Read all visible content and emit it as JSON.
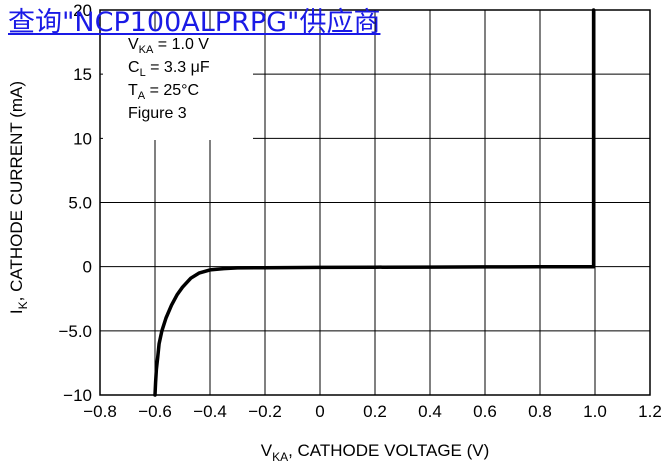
{
  "link": {
    "text": "查询\"NCP100ALPRPG\"供应商"
  },
  "chart_data": {
    "type": "line",
    "ylabel": "I",
    "ylabel_sub": "K",
    "ylabel_rest": ", CATHODE CURRENT (mA)",
    "xlabel": "V",
    "xlabel_sub": "KA",
    "xlabel_rest": ", CATHODE VOLTAGE (V)",
    "xlim": [
      -0.8,
      1.2
    ],
    "ylim": [
      -10,
      20
    ],
    "x_ticks": [
      -0.8,
      -0.6,
      -0.4,
      -0.2,
      0,
      0.2,
      0.4,
      0.6,
      0.8,
      1.0,
      1.2
    ],
    "x_tick_labels": [
      "−0.8",
      "−0.6",
      "−0.4",
      "−0.2",
      "0",
      "0.2",
      "0.4",
      "0.6",
      "0.8",
      "1.0",
      "1.2"
    ],
    "y_ticks": [
      -10,
      -5,
      0,
      5,
      10,
      15,
      20
    ],
    "y_tick_labels": [
      "−10",
      "−5.0",
      "0",
      "5.0",
      "10",
      "15",
      "20"
    ],
    "grid": true,
    "annotations": [
      {
        "main": "V",
        "sub": "KA",
        "rest": " = 1.0 V"
      },
      {
        "main": "C",
        "sub": "L",
        "rest": " = 3.3 μF"
      },
      {
        "main": "T",
        "sub": "A",
        "rest": " = 25°C"
      },
      {
        "main": "Figure 3",
        "sub": "",
        "rest": ""
      }
    ],
    "series": [
      {
        "x": [
          -0.6,
          -0.598,
          -0.595,
          -0.59,
          -0.585,
          -0.575,
          -0.56,
          -0.54,
          -0.52,
          -0.5,
          -0.47,
          -0.44,
          -0.4,
          -0.35,
          -0.3,
          -0.2,
          0,
          0.2,
          0.4,
          0.6,
          0.8,
          0.98,
          0.995,
          0.995
        ],
        "y": [
          -10,
          -9,
          -8,
          -7,
          -6,
          -5,
          -4,
          -3,
          -2.2,
          -1.6,
          -0.9,
          -0.5,
          -0.25,
          -0.15,
          -0.1,
          -0.08,
          -0.06,
          -0.04,
          -0.03,
          -0.02,
          -0.01,
          0,
          0,
          20
        ]
      }
    ]
  }
}
